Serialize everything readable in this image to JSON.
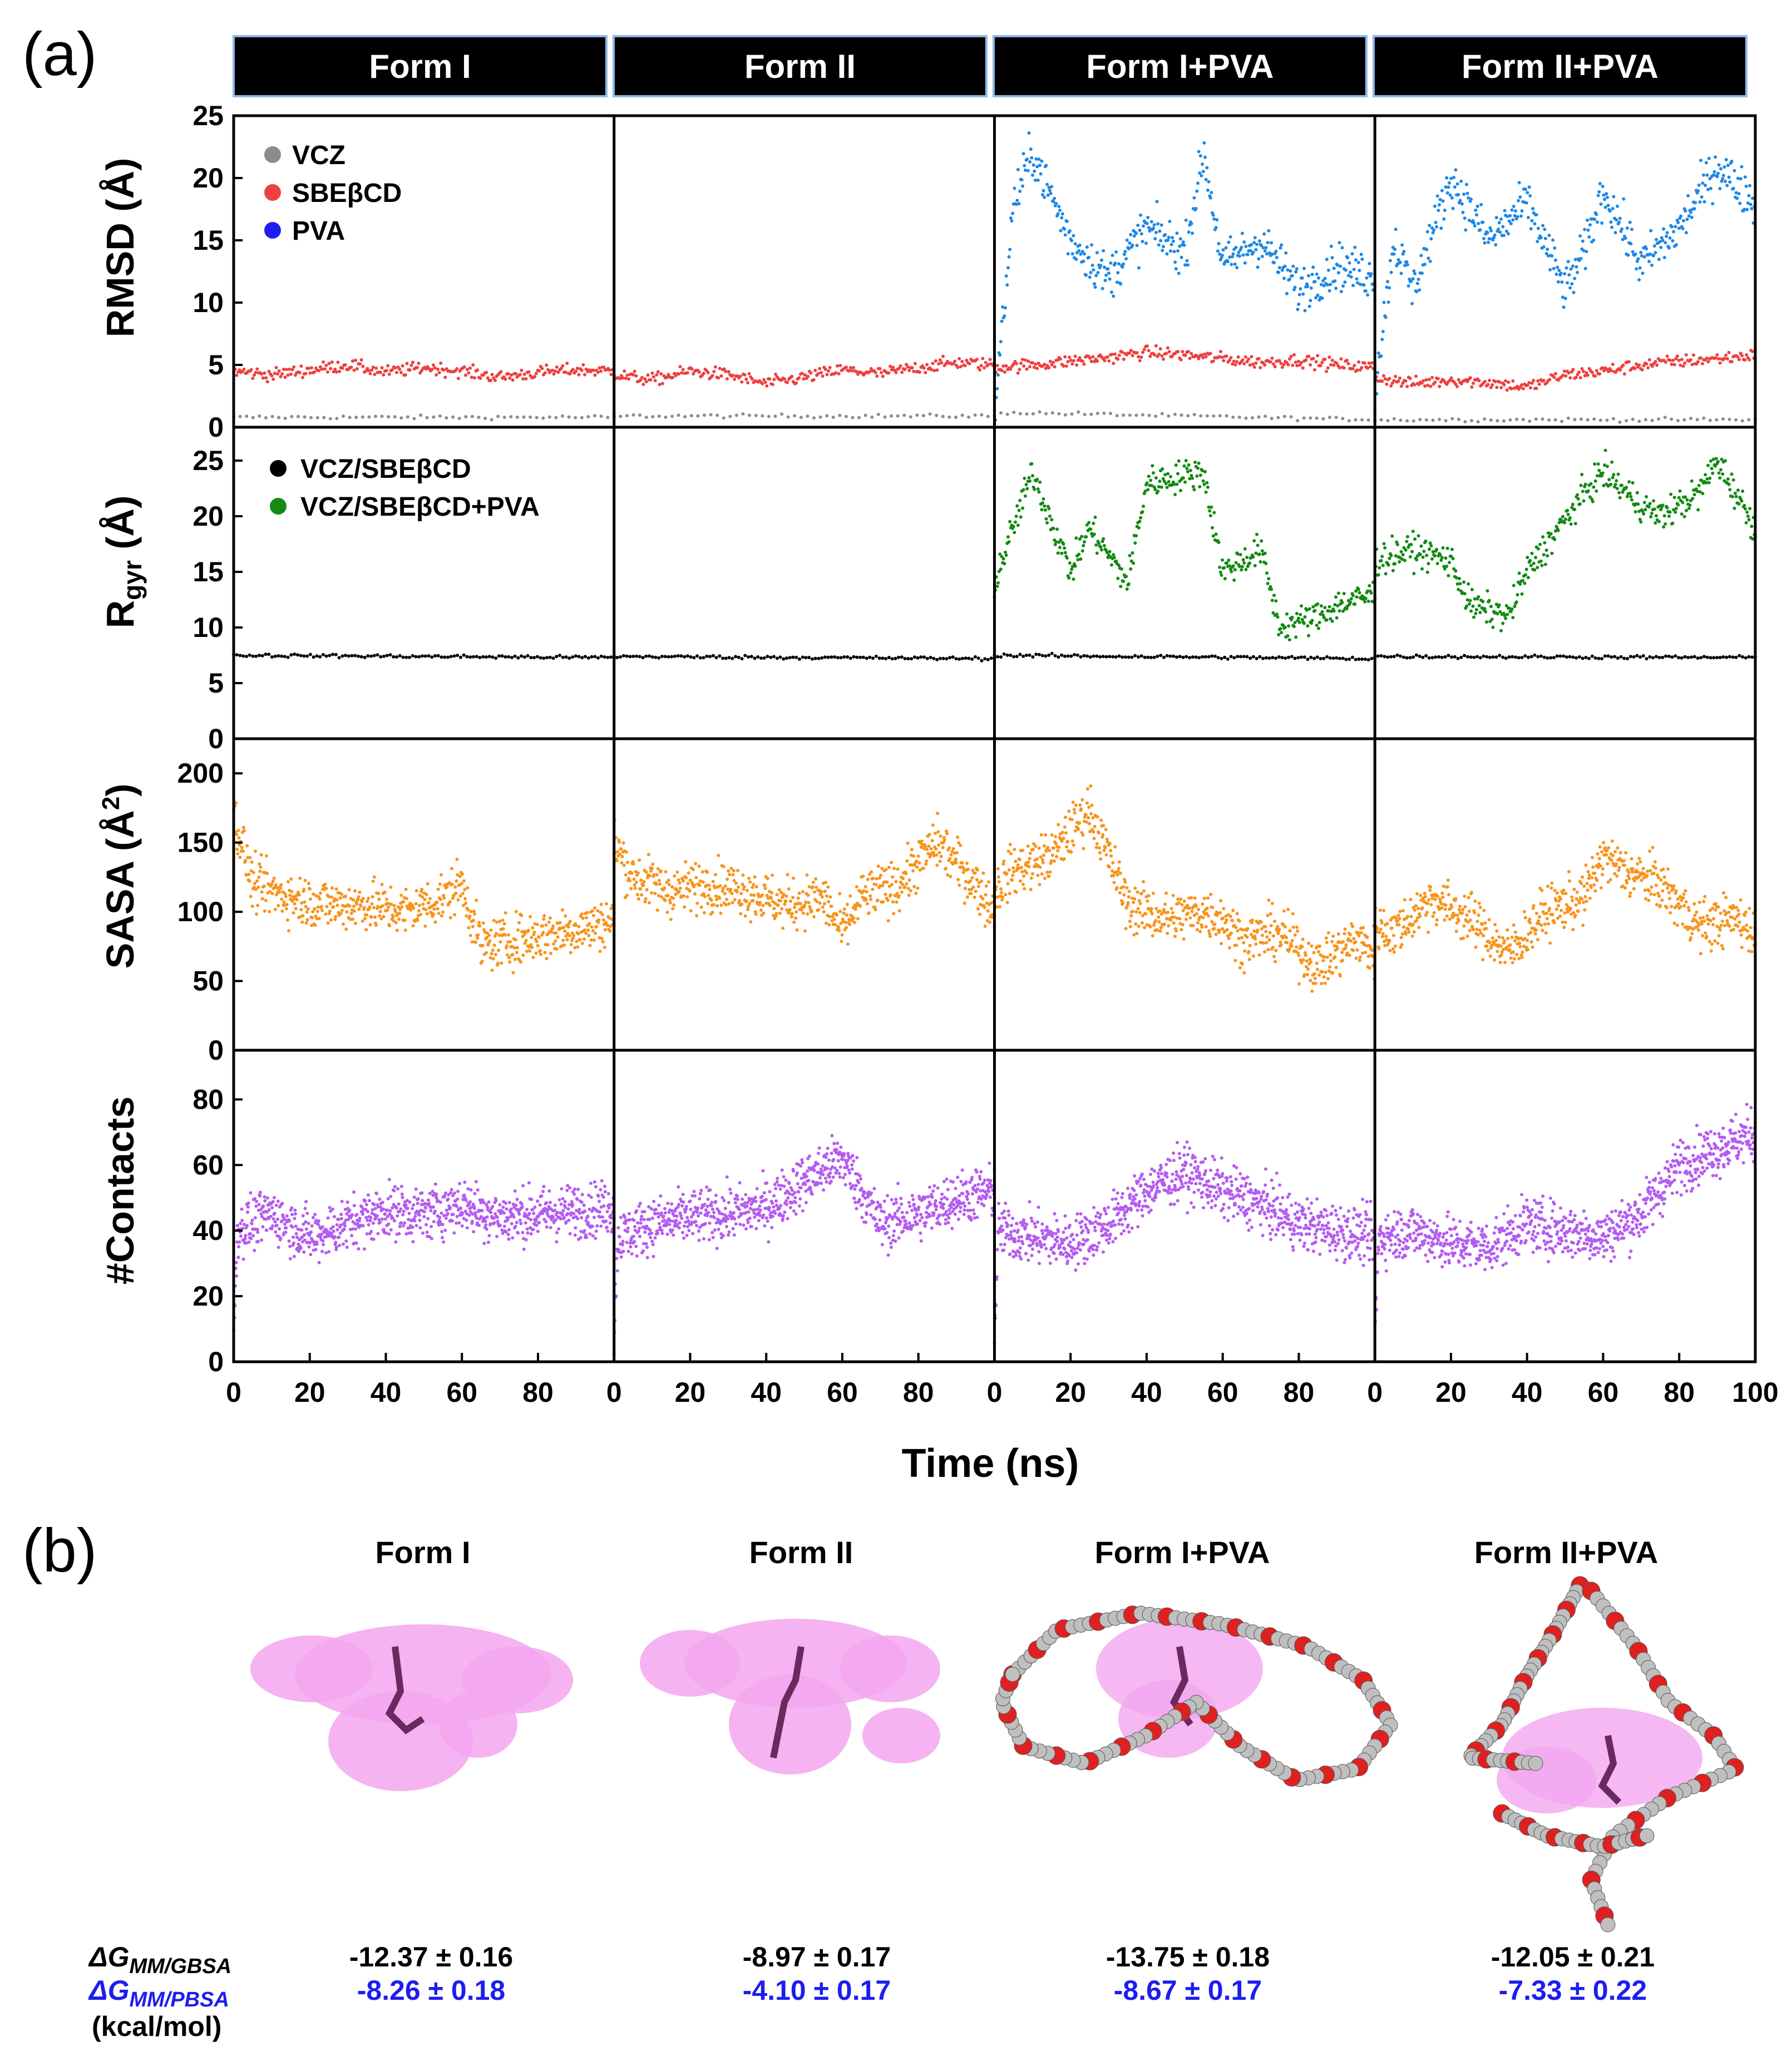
{
  "panel_labels": {
    "a": "(a)",
    "b": "(b)"
  },
  "forms": [
    "Form I",
    "Form II",
    "Form I+PVA",
    "Form II+PVA"
  ],
  "colors": {
    "vcz": "#8c8c8c",
    "sbe": "#ee4040",
    "pva": "#1e88e5",
    "complex": "#000000",
    "complex_pva": "#138a13",
    "sasa": "#f7941d",
    "contacts": "#b45cf0",
    "header_bg": "#000000",
    "header_edge": "#8fb8e8",
    "surface": "#f3a6ef",
    "pva_bead": "#bfbfbf",
    "pva_o": "#e02020",
    "drug": "#6a2a60",
    "pbsa_text": "#1d1df0"
  },
  "xaxis": {
    "label": "Time (ns)",
    "ticks": [
      "0",
      "20",
      "40",
      "60",
      "80",
      "100"
    ],
    "range": [
      0,
      100
    ]
  },
  "chart_data": [
    {
      "type": "scatter",
      "id": "rmsd",
      "ylabel": "RMSD (Å)",
      "ylim": [
        0,
        25
      ],
      "yticks": [
        "0",
        "5",
        "10",
        "15",
        "20",
        "25"
      ],
      "legend": [
        "VCZ",
        "SBEβCD",
        "PVA"
      ],
      "series": [
        {
          "name": "VCZ",
          "color_key": "vcz",
          "x": [
            0,
            100
          ],
          "per_form_y": [
            [
              0.8,
              0.8
            ],
            [
              0.9,
              0.9
            ],
            [
              1.2,
              0.6
            ],
            [
              0.6,
              0.6
            ]
          ]
        },
        {
          "name": "SBEβCD",
          "color_key": "sbe",
          "x": [
            0,
            10,
            20,
            30,
            40,
            50,
            60,
            70,
            80,
            90,
            100
          ],
          "per_form_y": [
            [
              4.5,
              4.2,
              4.6,
              5.0,
              4.4,
              4.8,
              4.5,
              4.0,
              4.4,
              4.6,
              4.5
            ],
            [
              4.2,
              3.8,
              4.5,
              4.2,
              3.5,
              4.0,
              4.6,
              4.3,
              4.8,
              5.2,
              5.0
            ],
            [
              4.8,
              5.0,
              5.3,
              5.6,
              6.0,
              5.8,
              5.5,
              5.2,
              5.4,
              5.0,
              4.8
            ],
            [
              4.0,
              3.5,
              3.8,
              3.6,
              3.2,
              4.2,
              4.5,
              5.0,
              5.3,
              5.5,
              5.8
            ]
          ]
        },
        {
          "name": "PVA",
          "color_key": "pva",
          "x": [
            0,
            5,
            10,
            20,
            30,
            40,
            50,
            55,
            60,
            70,
            80,
            90,
            100
          ],
          "per_form_y": [
            null,
            null,
            [
              1,
              18,
              22,
              15,
              12,
              16,
              14,
              22,
              13,
              15,
              11,
              13,
              12
            ],
            [
              3,
              15,
              11,
              20,
              15,
              18,
              11,
              14,
              19,
              13,
              16,
              21,
              18
            ]
          ]
        }
      ]
    },
    {
      "type": "scatter",
      "id": "rgyr",
      "ylabel": "Rgyr (Å)",
      "ylim": [
        0,
        28
      ],
      "yticks": [
        "0",
        "5",
        "10",
        "15",
        "20",
        "25"
      ],
      "legend": [
        "VCZ/SBEβCD",
        "VCZ/SBEβCD+PVA"
      ],
      "series": [
        {
          "name": "VCZ/SBEβCD",
          "color_key": "complex",
          "x": [
            0,
            100
          ],
          "per_form_y": [
            [
              7.5,
              7.3
            ],
            [
              7.4,
              7.2
            ],
            [
              7.5,
              7.2
            ],
            [
              7.4,
              7.3
            ]
          ]
        },
        {
          "name": "VCZ/SBEβCD+PVA",
          "color_key": "complex_pva",
          "x": [
            0,
            10,
            20,
            25,
            35,
            40,
            55,
            60,
            70,
            75,
            85,
            90,
            100
          ],
          "per_form_y": [
            null,
            null,
            [
              14,
              24,
              15,
              19,
              14,
              23,
              24,
              15,
              17,
              10,
              11,
              12,
              13
            ],
            [
              16,
              17,
              16,
              12,
              11,
              15,
              22,
              24,
              21,
              20,
              22,
              25,
              19
            ]
          ]
        }
      ]
    },
    {
      "type": "scatter",
      "id": "sasa",
      "ylabel": "SASA (Å2)",
      "ylim": [
        0,
        225
      ],
      "yticks": [
        "0",
        "50",
        "100",
        "150",
        "200"
      ],
      "series": [
        {
          "name": "SASA",
          "color_key": "sasa",
          "x": [
            0,
            5,
            15,
            25,
            35,
            45,
            55,
            60,
            65,
            75,
            85,
            95,
            100
          ],
          "per_form_y": [
            [
              170,
              120,
              110,
              105,
              105,
              100,
              110,
              120,
              75,
              80,
              85,
              90,
              95
            ],
            [
              150,
              125,
              115,
              120,
              115,
              105,
              110,
              85,
              110,
              120,
              150,
              120,
              100
            ],
            [
              115,
              130,
              140,
              175,
              105,
              95,
              100,
              95,
              80,
              85,
              60,
              80,
              70
            ],
            [
              90,
              85,
              110,
              95,
              70,
              100,
              110,
              140,
              130,
              120,
              90,
              95,
              85
            ]
          ]
        }
      ]
    },
    {
      "type": "scatter",
      "id": "contacts",
      "ylabel": "#Contacts",
      "ylim": [
        0,
        95
      ],
      "yticks": [
        "0",
        "20",
        "40",
        "60",
        "80"
      ],
      "series": [
        {
          "name": "#Contacts",
          "color_key": "contacts",
          "x": [
            0,
            1,
            10,
            20,
            30,
            40,
            50,
            60,
            70,
            80,
            90,
            100
          ],
          "per_form_y": [
            [
              8,
              40,
              45,
              38,
              42,
              46,
              45,
              48,
              44,
              45,
              46,
              47
            ],
            [
              8,
              38,
              42,
              44,
              45,
              47,
              55,
              62,
              42,
              45,
              50,
              52
            ],
            [
              8,
              40,
              38,
              36,
              42,
              52,
              58,
              52,
              48,
              42,
              40,
              38
            ],
            [
              8,
              38,
              40,
              36,
              35,
              42,
              40,
              38,
              45,
              60,
              65,
              70
            ]
          ]
        }
      ]
    }
  ],
  "panel_b": {
    "row_labels": {
      "gbsa": "ΔGMM/GBSA",
      "pbsa": "ΔGMM/PBSA",
      "units": "(kcal/mol)"
    },
    "gbsa_prefix": "ΔG",
    "gbsa_sub": "MM/GBSA",
    "pbsa_prefix": "ΔG",
    "pbsa_sub": "MM/PBSA",
    "gbsa": [
      "-12.37 ± 0.16",
      "-8.97 ± 0.17",
      "-13.75 ± 0.18",
      "-12.05 ± 0.21"
    ],
    "pbsa": [
      "-8.26 ± 0.18",
      "-4.10 ± 0.17",
      "-8.67 ± 0.17",
      "-7.33 ± 0.22"
    ]
  }
}
